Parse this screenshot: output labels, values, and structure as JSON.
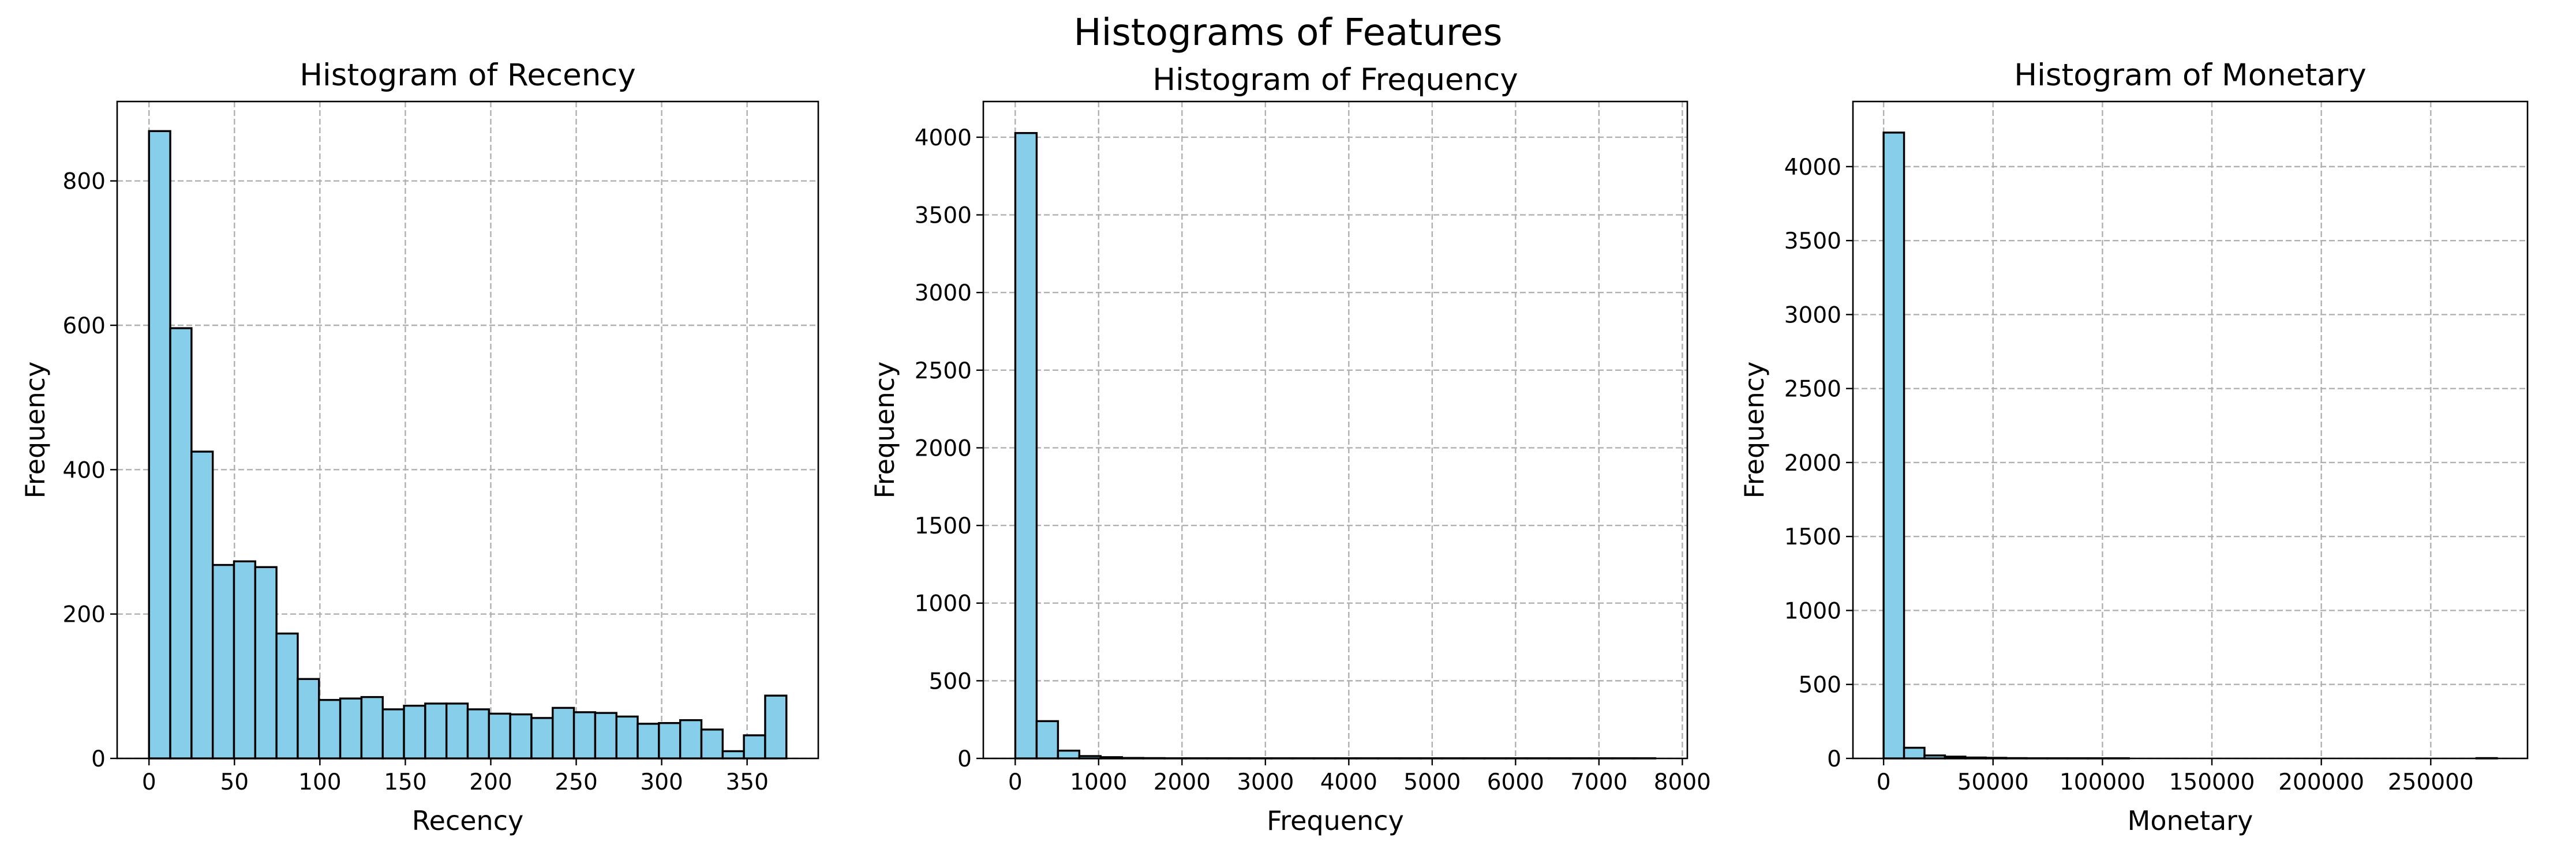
{
  "figure": {
    "suptitle": "Histograms of Features"
  },
  "colors": {
    "bar_fill": "#87CEEB",
    "bar_edge": "#000000",
    "grid": "#b0b0b0"
  },
  "chart_data": [
    {
      "type": "bar",
      "title": "Histogram of Recency",
      "xlabel": "Recency",
      "ylabel": "Frequency",
      "bins": 30,
      "bin_start": 0,
      "bin_end": 373,
      "xlim": [
        -18.65,
        391.65
      ],
      "ylim": [
        0,
        910
      ],
      "xticks": [
        0,
        50,
        100,
        150,
        200,
        250,
        300,
        350
      ],
      "yticks": [
        0,
        200,
        400,
        600,
        800
      ],
      "grid": true,
      "values": [
        869,
        596,
        425,
        268,
        273,
        265,
        173,
        110,
        81,
        83,
        85,
        68,
        73,
        76,
        76,
        68,
        62,
        61,
        56,
        70,
        64,
        63,
        58,
        48,
        49,
        53,
        40,
        10,
        32,
        87
      ]
    },
    {
      "type": "bar",
      "title": "Histogram of Frequency",
      "xlabel": "Frequency",
      "ylabel": "Frequency",
      "bins": 30,
      "bin_start": 1,
      "bin_end": 7676,
      "xlim": [
        -382.75,
        8059.75
      ],
      "ylim": [
        0,
        4230
      ],
      "xticks": [
        0,
        1000,
        2000,
        3000,
        4000,
        5000,
        6000,
        7000,
        8000
      ],
      "yticks": [
        0,
        500,
        1000,
        1500,
        2000,
        2500,
        3000,
        3500,
        4000
      ],
      "grid": true,
      "values": [
        4027,
        240,
        50,
        15,
        8,
        3,
        2,
        1,
        1,
        1,
        1,
        1,
        1,
        1,
        1,
        1,
        1,
        1,
        1,
        1,
        1,
        1,
        1,
        1,
        1,
        1,
        1,
        1,
        1,
        1
      ]
    },
    {
      "type": "bar",
      "title": "Histogram of Monetary",
      "xlabel": "Monetary",
      "ylabel": "Frequency",
      "bins": 30,
      "bin_start": 0,
      "bin_end": 280206,
      "xlim": [
        -14010,
        294216
      ],
      "ylim": [
        0,
        4440
      ],
      "xticks": [
        0,
        50000,
        100000,
        150000,
        200000,
        250000
      ],
      "yticks": [
        0,
        500,
        1000,
        1500,
        2000,
        2500,
        3000,
        3500,
        4000
      ],
      "grid": true,
      "values": [
        4230,
        72,
        20,
        12,
        6,
        4,
        2,
        1,
        1,
        1,
        1,
        1,
        0,
        0,
        0,
        0,
        0,
        0,
        0,
        0,
        0,
        0,
        0,
        0,
        0,
        0,
        0,
        0,
        0,
        2
      ]
    }
  ]
}
